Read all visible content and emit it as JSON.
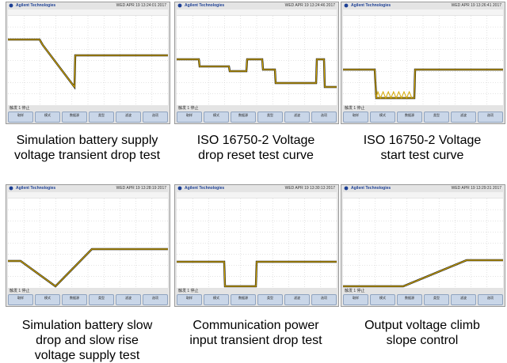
{
  "scope": {
    "brand": "Agilent Technologies",
    "softkeys": [
      "取样",
      "模式",
      "数据源",
      "类型",
      "滤波",
      "选项"
    ],
    "colors": {
      "trace": "#d4a800",
      "trace_dark": "#1a1a1a",
      "grid": "#c8c8c8",
      "brand": "#1c3f94"
    }
  },
  "panels": [
    {
      "caption": "Simulation battery supply voltage transient drop test",
      "caption_lines": [
        "Simulation battery supply",
        "voltage transient drop test"
      ],
      "date": "WED APR 19 13:24:01 2017",
      "status": "触发 1 停止"
    },
    {
      "caption": "ISO 16750-2 Voltage drop reset test curve",
      "caption_lines": [
        "ISO 16750-2 Voltage",
        "drop reset test curve"
      ],
      "date": "WED APR 19 13:24:46 2017",
      "status": "触发 1 停止"
    },
    {
      "caption": "ISO 16750-2 Voltage start test curve",
      "caption_lines": [
        "ISO 16750-2 Voltage",
        "start test curve"
      ],
      "date": "WED APR 19 13:26:41 2017",
      "status": "触发 1 停止"
    },
    {
      "caption": "Simulation battery slow drop and slow rise voltage supply test",
      "caption_lines": [
        "Simulation battery slow",
        "drop and slow rise",
        "voltage supply test"
      ],
      "date": "WED APR 19 13:28:19 2017",
      "status": "触发 1 停止"
    },
    {
      "caption": "Communication power input transient drop test",
      "caption_lines": [
        "Communication power",
        "input transient drop test"
      ],
      "date": "WED APR 19 13:30:13 2017",
      "status": "触发 1 停止"
    },
    {
      "caption": "Output voltage climb slope control",
      "caption_lines": [
        "Output voltage climb",
        "slope control"
      ],
      "date": "WED APR 19 13:29:31 2017",
      "status": "触发 1 停止"
    }
  ]
}
